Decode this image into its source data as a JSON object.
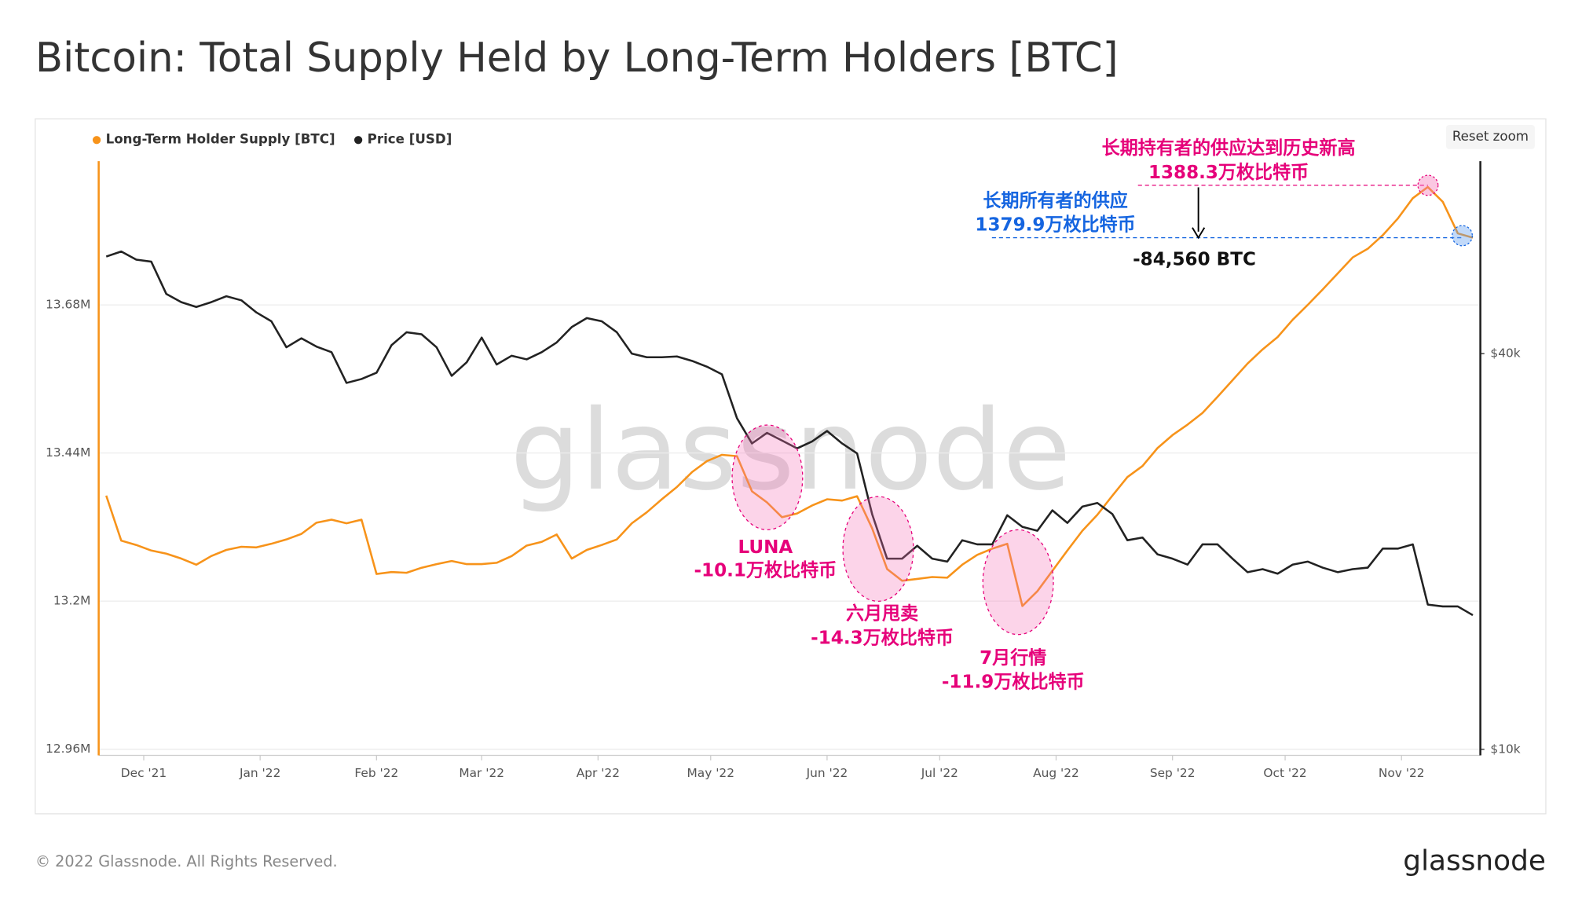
{
  "title": "Bitcoin: Total Supply Held by Long-Term Holders [BTC]",
  "footer": "© 2022 Glassnode. All Rights Reserved.",
  "logo": "glassnode",
  "reset_zoom": "Reset zoom",
  "chart_data": {
    "type": "line",
    "watermark": "glassnode",
    "legend": "top-left",
    "grid": true,
    "y2log": true,
    "xlim": [
      -12,
      356
    ],
    "xticks": [
      {
        "value": 0,
        "label": "Dec '21"
      },
      {
        "value": 31,
        "label": "Jan '22"
      },
      {
        "value": 62,
        "label": "Feb '22"
      },
      {
        "value": 90,
        "label": "Mar '22"
      },
      {
        "value": 121,
        "label": "Apr '22"
      },
      {
        "value": 151,
        "label": "May '22"
      },
      {
        "value": 182,
        "label": "Jun '22"
      },
      {
        "value": 212,
        "label": "Jul '22"
      },
      {
        "value": 243,
        "label": "Aug '22"
      },
      {
        "value": 274,
        "label": "Sep '22"
      },
      {
        "value": 304,
        "label": "Oct '22"
      },
      {
        "value": 335,
        "label": "Nov '22"
      }
    ],
    "ylim": [
      12950000,
      13913000
    ],
    "yticks": [
      {
        "value": 12960000,
        "label": "12.96M"
      },
      {
        "value": 13200000,
        "label": "13.2M"
      },
      {
        "value": 13440000,
        "label": "13.44M"
      },
      {
        "value": 13680000,
        "label": "13.68M"
      }
    ],
    "y2lim": [
      9790,
      78500
    ],
    "y2ticks": [
      {
        "value": 10000,
        "label": "$10k"
      },
      {
        "value": 40000,
        "label": "$40k"
      }
    ],
    "x": [
      -10,
      -6,
      -2,
      2,
      6,
      10,
      14,
      18,
      22,
      26,
      30,
      34,
      38,
      42,
      46,
      50,
      54,
      58,
      62,
      66,
      70,
      74,
      78,
      82,
      86,
      90,
      94,
      98,
      102,
      106,
      110,
      114,
      118,
      122,
      126,
      130,
      134,
      138,
      142,
      146,
      150,
      154,
      158,
      162,
      166,
      170,
      174,
      178,
      182,
      186,
      190,
      194,
      198,
      202,
      206,
      210,
      214,
      218,
      222,
      226,
      230,
      234,
      238,
      242,
      246,
      250,
      254,
      258,
      262,
      266,
      270,
      274,
      278,
      282,
      286,
      290,
      294,
      298,
      302,
      306,
      310,
      314,
      318,
      322,
      326,
      330,
      334,
      338,
      342,
      346,
      350,
      354
    ],
    "series": [
      {
        "name": "Long-Term Holder Supply [BTC]",
        "color": "#f7931a",
        "axis": "y",
        "values": [
          13371000,
          13298000,
          13291000,
          13282000,
          13277000,
          13269000,
          13259000,
          13273000,
          13283000,
          13288000,
          13287000,
          13293000,
          13300000,
          13309000,
          13327000,
          13332000,
          13326000,
          13332000,
          13244000,
          13247000,
          13246000,
          13254000,
          13260000,
          13265000,
          13260000,
          13260000,
          13262000,
          13273000,
          13290000,
          13296000,
          13308000,
          13269000,
          13283000,
          13291000,
          13300000,
          13326000,
          13344000,
          13365000,
          13385000,
          13409000,
          13427000,
          13437000,
          13435000,
          13378000,
          13360000,
          13336000,
          13342000,
          13355000,
          13365000,
          13363000,
          13370000,
          13318000,
          13252000,
          13233000,
          13236000,
          13239000,
          13238000,
          13259000,
          13275000,
          13285000,
          13293000,
          13192000,
          13216000,
          13249000,
          13282000,
          13314000,
          13340000,
          13371000,
          13401000,
          13419000,
          13448000,
          13469000,
          13486000,
          13505000,
          13531000,
          13558000,
          13585000,
          13608000,
          13628000,
          13656000,
          13680000,
          13705000,
          13731000,
          13757000,
          13771000,
          13793000,
          13820000,
          13853000,
          13871000,
          13847000,
          13796000,
          13789000
        ]
      },
      {
        "name": "Price [USD]",
        "color": "#222222",
        "axis": "y2",
        "values": [
          56200,
          57200,
          55600,
          55200,
          49300,
          47900,
          47100,
          47900,
          48900,
          48200,
          46200,
          44800,
          40900,
          42200,
          41000,
          40200,
          36100,
          36600,
          37400,
          41200,
          43100,
          42800,
          40900,
          37000,
          38800,
          42300,
          38500,
          39700,
          39200,
          40200,
          41600,
          43900,
          45300,
          44800,
          43100,
          40000,
          39500,
          39500,
          39600,
          39000,
          38200,
          37200,
          31900,
          29200,
          30300,
          29500,
          28700,
          29400,
          30500,
          29200,
          28200,
          22800,
          19500,
          19500,
          20400,
          19500,
          19300,
          20800,
          20500,
          20500,
          22700,
          21800,
          21500,
          23100,
          22100,
          23400,
          23700,
          22800,
          20800,
          21000,
          19800,
          19500,
          19100,
          20500,
          20500,
          19500,
          18600,
          18800,
          18500,
          19100,
          19300,
          18900,
          18600,
          18800,
          18900,
          20200,
          20200,
          20500,
          16600,
          16500,
          16500,
          16000
        ]
      }
    ],
    "annotations": [
      "长期持有者的供应达到历史新高",
      "1388.3万枚比特币",
      "长期所有者的供应",
      "1379.9万枚比特币",
      "-84,560 BTC",
      "LUNA",
      "-10.1万枚比特币",
      "六月甩卖",
      "-14.3万枚比特币",
      "7月行情",
      "-11.9万枚比特币"
    ]
  }
}
